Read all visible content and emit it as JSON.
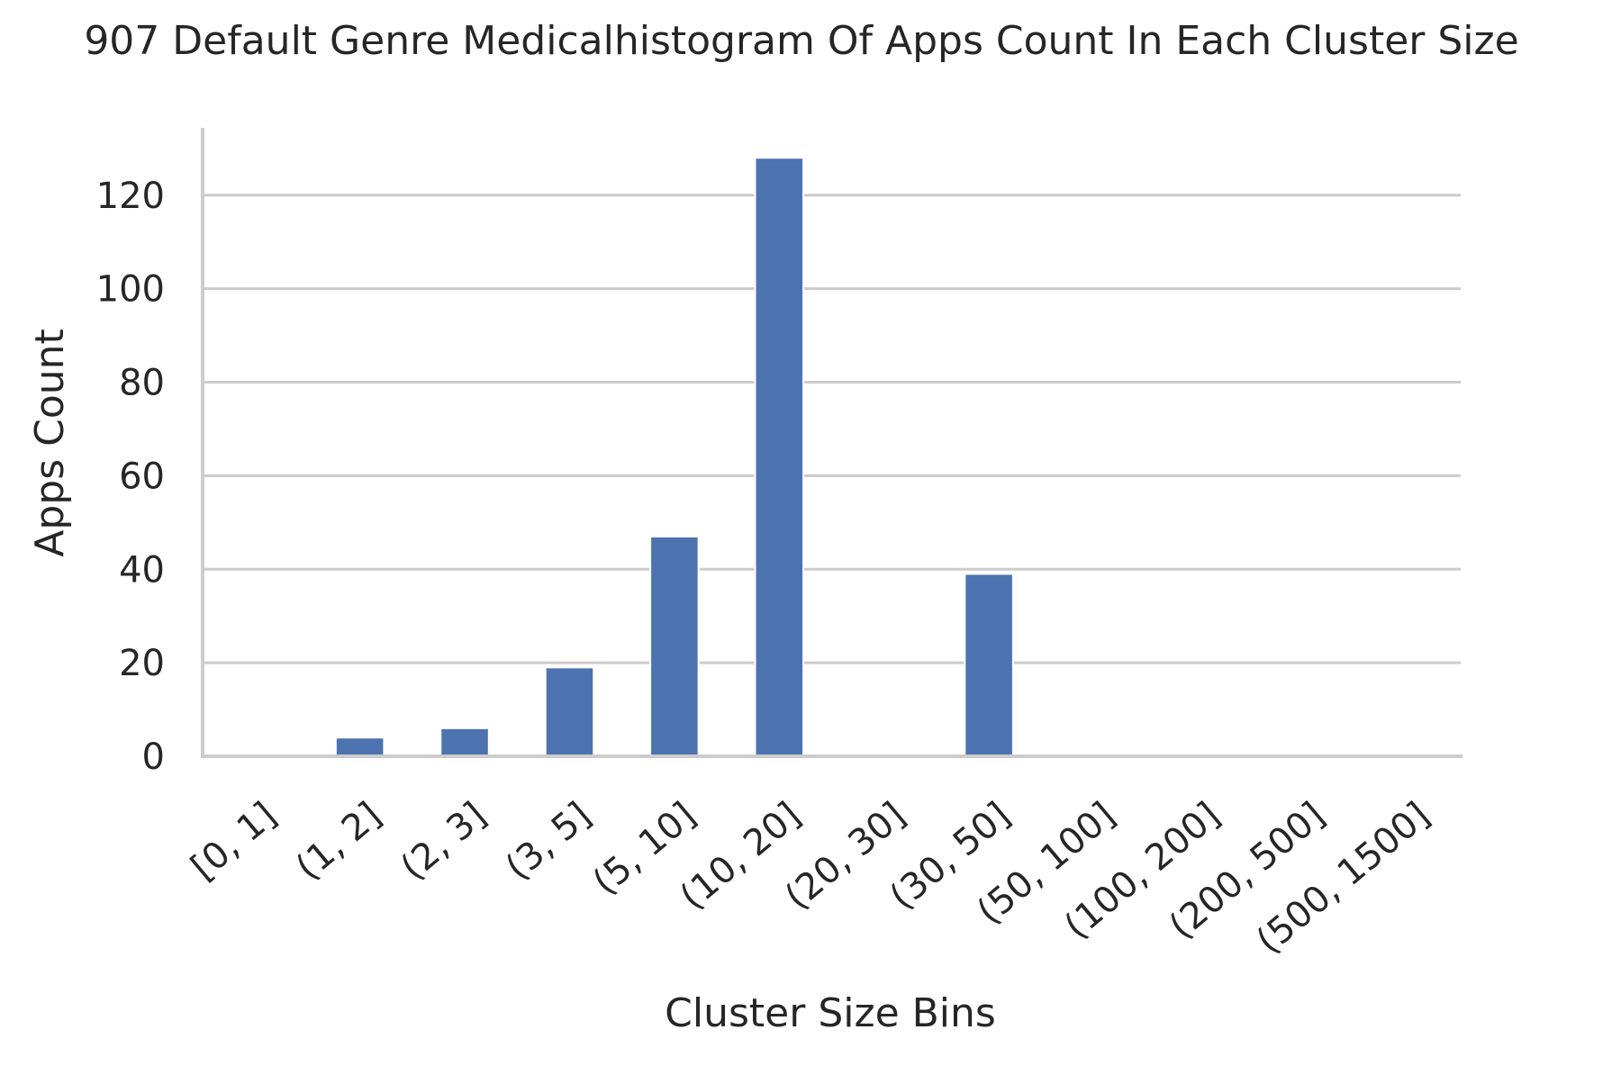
{
  "chart_data": {
    "type": "bar",
    "title": "907 Default Genre Medicalhistogram Of Apps Count In Each Cluster Size",
    "xlabel": "Cluster Size Bins",
    "ylabel": "Apps Count",
    "categories": [
      "[0, 1]",
      "(1, 2]",
      "(2, 3]",
      "(3, 5]",
      "(5, 10]",
      "(10, 20]",
      "(20, 30]",
      "(30, 50]",
      "(50, 100]",
      "(100, 200]",
      "(200, 500]",
      "(500, 1500]"
    ],
    "values": [
      0,
      4,
      6,
      19,
      47,
      128,
      0,
      39,
      0,
      0,
      0,
      0
    ],
    "yticks": [
      0,
      20,
      40,
      60,
      80,
      100,
      120
    ],
    "ylim": [
      0,
      134.4
    ],
    "grid": "horizontal",
    "legend": "none",
    "bar_color": "#4c72b0",
    "grid_color": "#cccccc",
    "axis_color": "#cccccc"
  }
}
